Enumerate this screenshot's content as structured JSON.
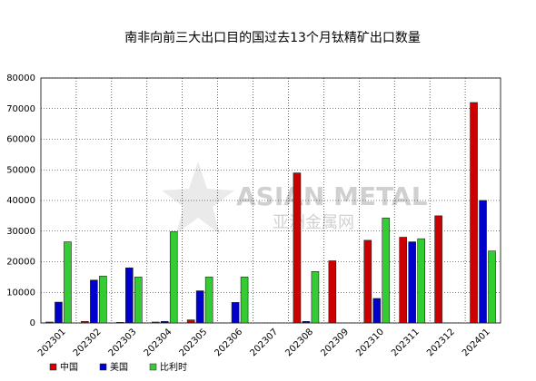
{
  "chart_data": {
    "type": "bar",
    "title": "南非向前三大出口目的国过去13个月钛精矿出口数量",
    "watermark": [
      "ASIAN METAL",
      "亚洲金属网"
    ],
    "categories": [
      "202301",
      "202302",
      "202303",
      "202304",
      "202305",
      "202306",
      "202307",
      "202308",
      "202309",
      "202310",
      "202311",
      "202312",
      "202401"
    ],
    "series": [
      {
        "name": "中国",
        "color": "#cc0000",
        "values": [
          300,
          500,
          200,
          300,
          1000,
          null,
          null,
          49000,
          20300,
          27000,
          28000,
          35000,
          72000
        ]
      },
      {
        "name": "美国",
        "color": "#0000cc",
        "values": [
          6800,
          14000,
          18000,
          500,
          10500,
          6700,
          null,
          500,
          null,
          8000,
          26500,
          null,
          40000
        ]
      },
      {
        "name": "比利时",
        "color": "#33cc33",
        "values": [
          26500,
          15300,
          15000,
          29800,
          15000,
          15000,
          null,
          16800,
          null,
          34300,
          27500,
          null,
          23500
        ]
      }
    ],
    "ylim": [
      0,
      80000
    ],
    "yticks": [
      0,
      10000,
      20000,
      30000,
      40000,
      50000,
      60000,
      70000,
      80000
    ],
    "grid": true
  }
}
